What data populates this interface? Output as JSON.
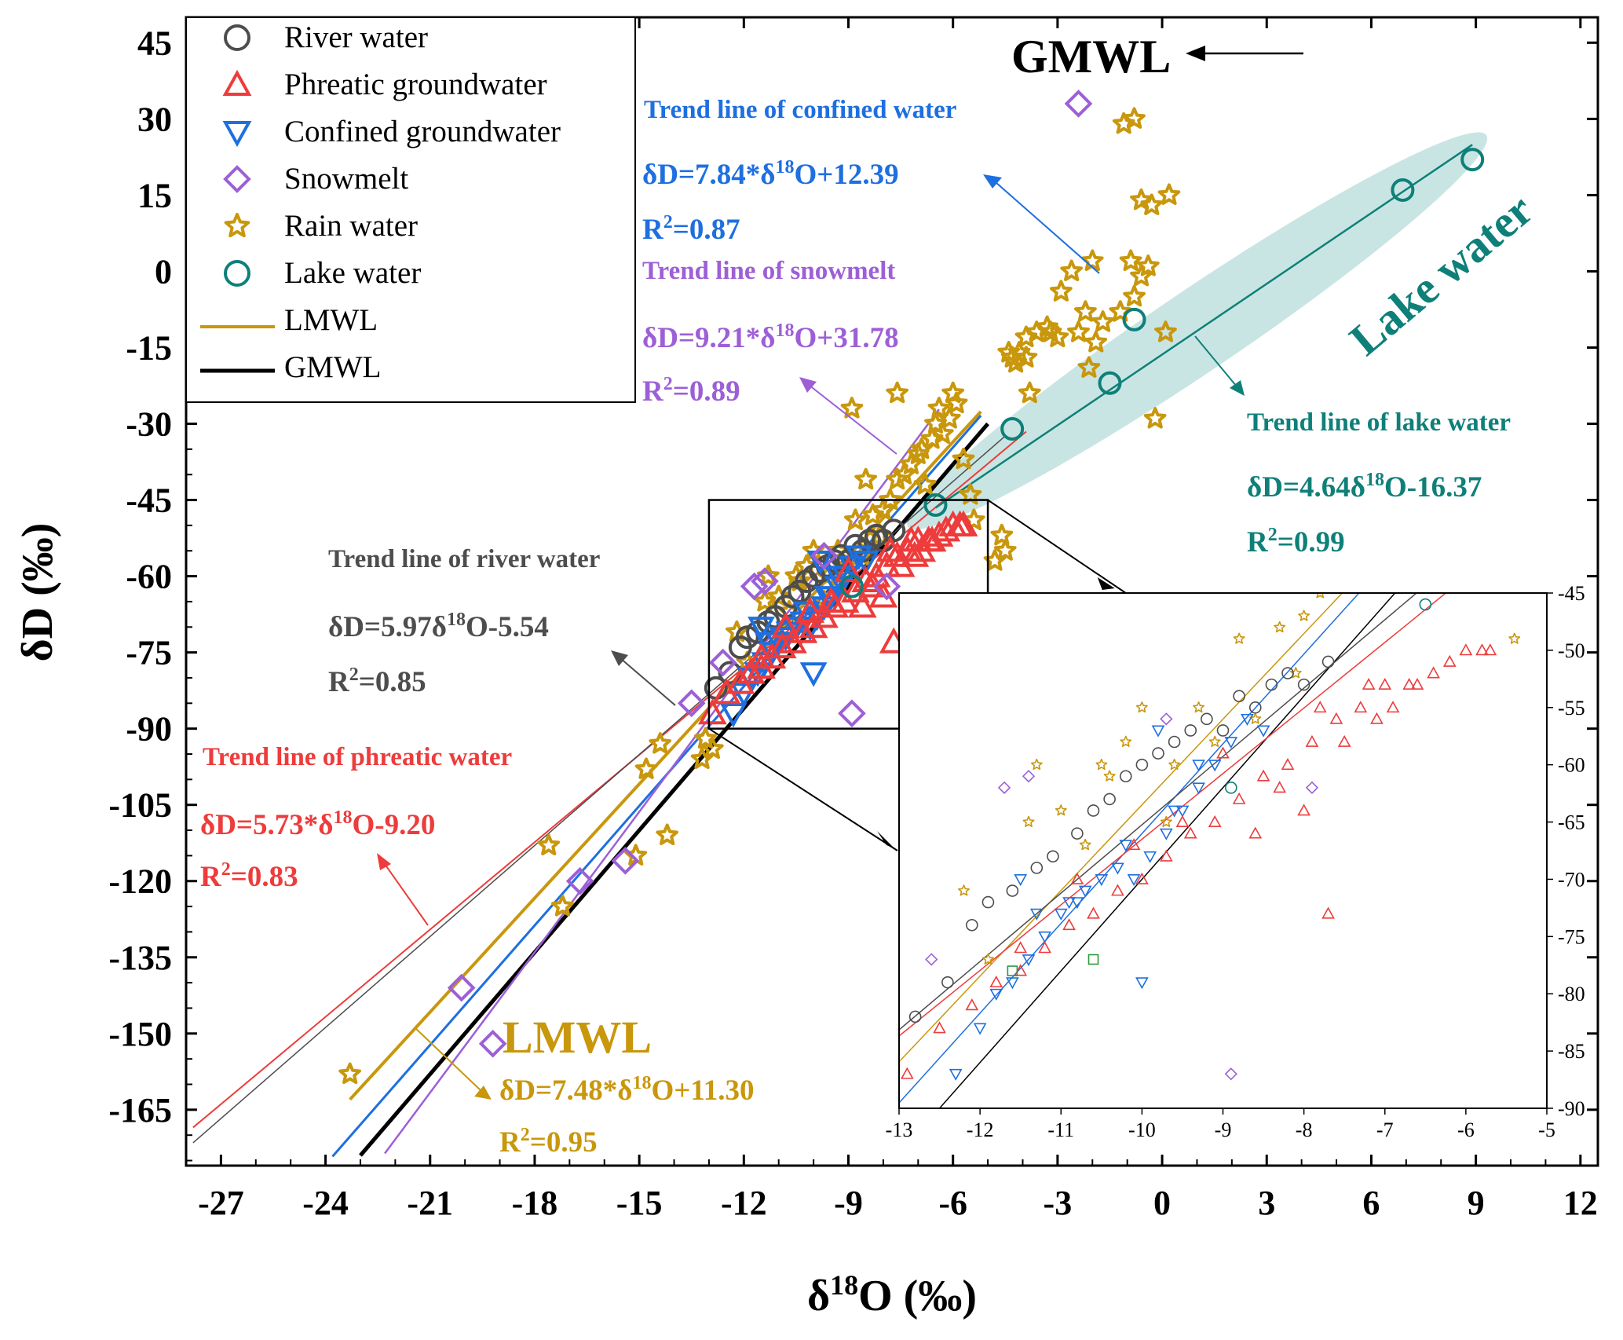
{
  "chart_data": {
    "type": "scatter",
    "xlabel": "δ18O (‰)",
    "ylabel": "δD (‰)",
    "xlim": [
      -28,
      12.5
    ],
    "ylim": [
      -176,
      50
    ],
    "xticks": [
      "-27",
      "-24",
      "-21",
      "-18",
      "-15",
      "-12",
      "-9",
      "-6",
      "-3",
      "0",
      "3",
      "6",
      "9",
      "12"
    ],
    "yticks": [
      "45",
      "30",
      "15",
      "0",
      "-15",
      "-30",
      "-45",
      "-60",
      "-75",
      "-90",
      "-105",
      "-120",
      "-135",
      "-150",
      "-165"
    ],
    "colors": {
      "river": "#4d4d4d",
      "phreatic": "#ee3b3b",
      "confined": "#1e6fe0",
      "snowmelt": "#9d5fd6",
      "rain": "#c9970c",
      "lake": "#0e8079",
      "gmwl": "#000000",
      "lake_ellipse": "#bfe1de"
    },
    "legend": [
      {
        "key": "river",
        "label": "River water",
        "marker": "circle"
      },
      {
        "key": "phreatic",
        "label": "Phreatic groundwater",
        "marker": "triangle-up"
      },
      {
        "key": "confined",
        "label": "Confined groundwater",
        "marker": "triangle-down"
      },
      {
        "key": "snowmelt",
        "label": "Snowmelt",
        "marker": "diamond"
      },
      {
        "key": "rain",
        "label": "Rain water",
        "marker": "star"
      },
      {
        "key": "lake",
        "label": "Lake water",
        "marker": "circle"
      },
      {
        "key": "lmwl",
        "label": "LMWL",
        "marker": "line"
      },
      {
        "key": "gmwl",
        "label": "GMWL",
        "marker": "line"
      }
    ],
    "lines": [
      {
        "name": "GMWL",
        "slope": 8.0,
        "intercept": 10.0,
        "x_range": [
          -23,
          -6.0
        ],
        "color": "gmwl",
        "width": 5
      },
      {
        "name": "GMWL-upper",
        "slope": 8.0,
        "intercept": 10.0,
        "x_range": [
          -6.0,
          -5.0
        ],
        "color": "gmwl",
        "width": 5
      },
      {
        "name": "LMWL",
        "slope": 7.48,
        "intercept": 11.3,
        "x_range": [
          -23.3,
          -5.2
        ],
        "color": "rain",
        "width": 4
      },
      {
        "name": "Confined",
        "slope": 7.84,
        "intercept": 12.39,
        "x_range": [
          -23.8,
          -5.2
        ],
        "color": "confined",
        "width": 3
      },
      {
        "name": "Snowmelt",
        "slope": 9.21,
        "intercept": 31.78,
        "x_range": [
          -22.3,
          -6.4
        ],
        "color": "snowmelt",
        "width": 2.5
      },
      {
        "name": "Phreatic",
        "slope": 5.73,
        "intercept": -9.2,
        "x_range": [
          -27.8,
          -3.9
        ],
        "color": "phreatic",
        "width": 2
      },
      {
        "name": "River",
        "slope": 5.97,
        "intercept": -5.54,
        "x_range": [
          -27.8,
          -4.5
        ],
        "color": "river",
        "width": 1.5
      },
      {
        "name": "Lake",
        "slope": 4.64,
        "intercept": -16.37,
        "x_range": [
          -6.5,
          8.9
        ],
        "color": "lake",
        "width": 2.5
      }
    ],
    "series": [
      {
        "key": "lake",
        "name": "Lake water",
        "marker": "circle",
        "size": 26,
        "x": [
          8.9,
          6.9,
          -0.8,
          -1.5,
          -4.3,
          -6.5,
          -8.9
        ],
        "y": [
          22.0,
          16.0,
          -9.5,
          -22.0,
          -31.0,
          -46.0,
          -62.0
        ]
      },
      {
        "key": "rain",
        "name": "Rain water",
        "marker": "star",
        "size": 26,
        "x": [
          -23.3,
          -17.6,
          -17.2,
          -15.1,
          -14.2,
          -14.8,
          -14.4,
          -13.1,
          -13.2,
          -12.9,
          -11.9,
          -12.2,
          -11.4,
          -11.0,
          -10.7,
          -10.5,
          -10.2,
          -10.0,
          -9.6,
          -9.3,
          -9.1,
          -8.8,
          -8.6,
          -8.1,
          -8.5,
          -8.3,
          -8.0,
          -7.8,
          -7.6,
          -7.4,
          -7.2,
          -7.0,
          -6.9,
          -6.8,
          -6.6,
          -6.5,
          -6.3,
          -6.1,
          -6.4,
          -6.0,
          -5.9,
          -5.7,
          -5.5,
          -5.4,
          -4.8,
          -4.6,
          -4.5,
          -4.4,
          -4.3,
          -4.2,
          -4.1,
          -3.9,
          -3.6,
          -3.3,
          -3.2,
          -3.0,
          -2.9,
          -2.6,
          -2.4,
          -2.1,
          -1.9,
          -1.7,
          -1.2,
          0.1,
          -2.2,
          -2.0,
          -0.8,
          -0.6,
          -0.4,
          -0.9,
          -0.6,
          0.2,
          -0.3,
          -1.1,
          -0.8,
          -3.9,
          -3.8,
          -0.2,
          -8.9,
          -7.6,
          -10.4,
          -9.7,
          -11.3
        ],
        "y": [
          -158,
          -113,
          -125,
          -115,
          -111,
          -98,
          -93,
          -92,
          -96,
          -94,
          -77,
          -71,
          -65,
          -64,
          -67,
          -60,
          -58,
          -55,
          -60,
          -55,
          -58,
          -49,
          -56,
          -52,
          -41,
          -48,
          -47,
          -45,
          -41,
          -40,
          -38,
          -36,
          -35,
          -42,
          -33,
          -30,
          -32,
          -29,
          -27,
          -24,
          -26,
          -37,
          -44,
          -49,
          -57,
          -52,
          -55,
          -16,
          -17,
          -18,
          -16,
          -13,
          -12,
          -11,
          -12,
          -13,
          -4,
          0,
          -12,
          -19,
          -14,
          -10,
          -8,
          -12,
          -8,
          2,
          -5,
          -1,
          1,
          2,
          14,
          15,
          13,
          29,
          30,
          -17,
          -24,
          -29,
          -27,
          -24,
          -61,
          -65,
          -60
        ]
      },
      {
        "key": "river",
        "name": "River water",
        "marker": "circle",
        "size": 26,
        "x": [
          -12.8,
          -12.4,
          -12.1,
          -11.9,
          -11.6,
          -11.3,
          -11.1,
          -10.8,
          -10.6,
          -10.4,
          -10.2,
          -10.0,
          -9.8,
          -9.6,
          -9.4,
          -9.2,
          -9.0,
          -8.8,
          -8.6,
          -8.4,
          -8.2,
          -8.0,
          -7.7
        ],
        "y": [
          -82,
          -79,
          -74,
          -72,
          -71,
          -69,
          -68,
          -66,
          -64,
          -63,
          -61,
          -60,
          -59,
          -58,
          -57,
          -56,
          -57,
          -54,
          -55,
          -53,
          -52,
          -53,
          -51
        ]
      },
      {
        "key": "confined",
        "name": "Confined groundwater",
        "marker": "triangle-down",
        "size": 28,
        "x": [
          -12.3,
          -12.0,
          -11.8,
          -11.6,
          -11.4,
          -11.2,
          -11.0,
          -10.9,
          -10.7,
          -10.5,
          -10.3,
          -10.1,
          -9.9,
          -9.7,
          -9.5,
          -9.3,
          -9.1,
          -8.9,
          -8.7,
          -10.0,
          -9.6,
          -9.3,
          -10.8,
          -11.3,
          -11.5,
          -10.2,
          -9.8,
          -8.5
        ],
        "y": [
          -87,
          -83,
          -80,
          -79,
          -77,
          -75,
          -73,
          -72,
          -71,
          -70,
          -69,
          -70,
          -68,
          -66,
          -64,
          -62,
          -60,
          -58,
          -56,
          -79,
          -64,
          -60,
          -72,
          -73,
          -70,
          -67,
          -57,
          -57
        ]
      },
      {
        "key": "phreatic",
        "name": "Phreatic groundwater",
        "marker": "triangle-up",
        "size": 30,
        "x": [
          -12.9,
          -12.5,
          -12.1,
          -11.8,
          -11.5,
          -11.2,
          -10.9,
          -10.6,
          -10.3,
          -10.0,
          -9.7,
          -9.4,
          -9.1,
          -8.8,
          -8.5,
          -8.2,
          -7.9,
          -7.6,
          -7.3,
          -7.0,
          -6.7,
          -6.4,
          -6.0,
          -5.7,
          -8.0,
          -7.5,
          -7.1,
          -6.9,
          -7.7,
          -8.3,
          -9.0,
          -9.5,
          -10.1,
          -10.8,
          -11.5,
          -7.8,
          -8.6,
          -7.2,
          -6.6,
          -6.2,
          -5.8
        ],
        "y": [
          -87,
          -83,
          -81,
          -79,
          -78,
          -76,
          -74,
          -73,
          -71,
          -70,
          -68,
          -66,
          -65,
          -63,
          -61,
          -60,
          -58,
          -56,
          -55,
          -53,
          -53,
          -52,
          -50,
          -50,
          -64,
          -58,
          -56,
          -55,
          -73,
          -62,
          -59,
          -65,
          -67,
          -70,
          -76,
          -55,
          -66,
          -53,
          -53,
          -51,
          -50
        ]
      },
      {
        "key": "snowmelt",
        "name": "Snowmelt",
        "marker": "diamond",
        "size": 30,
        "x": [
          -2.4,
          -8.9,
          -7.9,
          -9.7,
          -11.4,
          -11.7,
          -12.6,
          -13.5,
          -19.2,
          -20.1,
          -16.7,
          -15.4
        ],
        "y": [
          33,
          -87,
          -62,
          -56,
          -61,
          -62,
          -77,
          -85,
          -152,
          -141,
          -120,
          -116
        ]
      }
    ],
    "inset": {
      "xlim": [
        -13,
        -5
      ],
      "ylim": [
        -90,
        -45
      ],
      "xticks": [
        "-13",
        "-12",
        "-11",
        "-10",
        "-9",
        "-8",
        "-7",
        "-6",
        "-5"
      ],
      "yticks": [
        "-45",
        "-50",
        "-55",
        "-60",
        "-65",
        "-70",
        "-75",
        "-80",
        "-85",
        "-90"
      ],
      "source_box": {
        "x": [
          -13,
          -5
        ],
        "y": [
          -90,
          -45
        ]
      },
      "extra_series": [
        {
          "key": "green",
          "color": "#2a9a3c",
          "marker": "square",
          "x": [
            -11.6,
            -10.6
          ],
          "y": [
            -78,
            -77
          ]
        }
      ]
    },
    "annotations": [
      {
        "text": "GMWL",
        "color": "gmwl",
        "size": 60
      },
      {
        "text": "Trend line of confined water",
        "color": "confined",
        "size": 33
      },
      {
        "text": "δD=7.84*δ18O+12.39",
        "color": "confined",
        "size": 37
      },
      {
        "text": "R2=0.87",
        "color": "confined",
        "size": 37
      },
      {
        "text": "Trend line of snowmelt",
        "color": "snowmelt",
        "size": 33
      },
      {
        "text": "δD=9.21*δ18O+31.78",
        "color": "snowmelt",
        "size": 37
      },
      {
        "text": "R2=0.89",
        "color": "snowmelt",
        "size": 37
      },
      {
        "text": "Lake water",
        "color": "lake",
        "size": 58
      },
      {
        "text": "Trend line of lake water",
        "color": "lake",
        "size": 33
      },
      {
        "text": "δD=4.64δ18O-16.37",
        "color": "lake",
        "size": 37
      },
      {
        "text": "R2=0.99",
        "color": "lake",
        "size": 37
      },
      {
        "text": "Trend line of river water",
        "color": "river",
        "size": 33
      },
      {
        "text": "δD=5.97δ18O-5.54",
        "color": "river",
        "size": 37
      },
      {
        "text": "R2=0.85",
        "color": "river",
        "size": 37
      },
      {
        "text": "Trend line of phreatic water",
        "color": "phreatic",
        "size": 33
      },
      {
        "text": "δD=5.73*δ18O-9.20",
        "color": "phreatic",
        "size": 37
      },
      {
        "text": "R2=0.83",
        "color": "phreatic",
        "size": 37
      },
      {
        "text": "LMWL",
        "color": "rain",
        "size": 58
      },
      {
        "text": "δD=7.48*δ18O+11.30",
        "color": "rain",
        "size": 37
      },
      {
        "text": "R2=0.95",
        "color": "rain",
        "size": 37
      }
    ]
  }
}
